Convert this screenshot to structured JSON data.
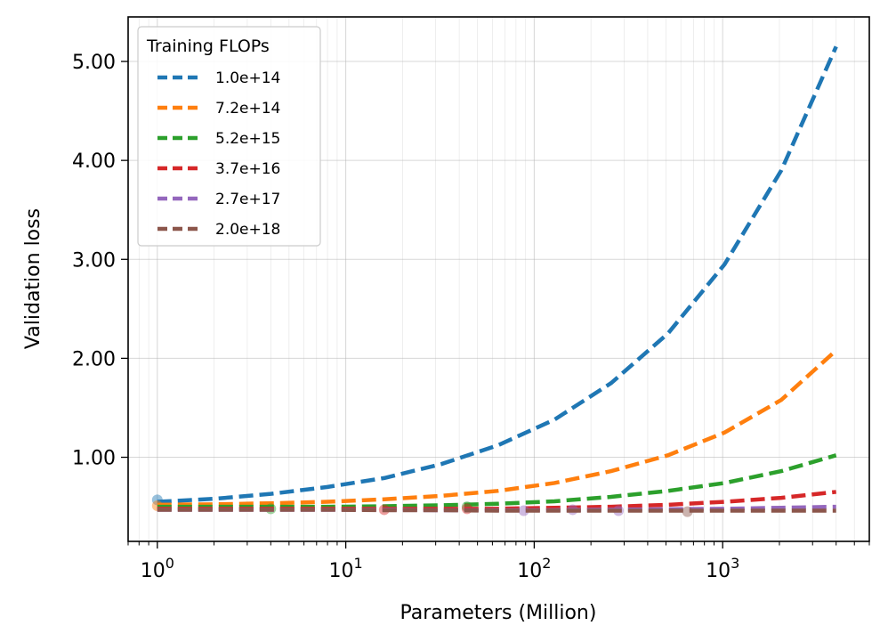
{
  "chart_data": {
    "type": "line",
    "xscale": "log",
    "xlabel": "Parameters (Million)",
    "ylabel": "Validation loss",
    "xlim": [
      0.7,
      6000
    ],
    "ylim": [
      0.15,
      5.45
    ],
    "yticks": [
      1.0,
      2.0,
      3.0,
      4.0,
      5.0
    ],
    "ytick_labels": [
      "1.00",
      "2.00",
      "3.00",
      "4.00",
      "5.00"
    ],
    "xticks": [
      {
        "base": "10",
        "exp": "0",
        "value": 1
      },
      {
        "base": "10",
        "exp": "1",
        "value": 10
      },
      {
        "base": "10",
        "exp": "2",
        "value": 100
      },
      {
        "base": "10",
        "exp": "3",
        "value": 1000
      }
    ],
    "grid": true,
    "legend": {
      "title": "Training FLOPs",
      "placement": "top-left"
    },
    "fit_x": [
      1,
      2,
      4,
      8,
      16,
      32,
      64,
      128,
      256,
      512,
      1024,
      2048,
      4000
    ],
    "series": [
      {
        "name": "1.0e+14",
        "color": "#1f77b4",
        "fit": [
          0.55,
          0.58,
          0.63,
          0.7,
          0.79,
          0.93,
          1.12,
          1.38,
          1.75,
          2.25,
          2.95,
          3.9,
          5.15
        ],
        "points": [
          {
            "x": 1.0,
            "y": 0.57
          }
        ]
      },
      {
        "name": "7.2e+14",
        "color": "#ff7f0e",
        "fit": [
          0.52,
          0.525,
          0.535,
          0.55,
          0.575,
          0.61,
          0.66,
          0.74,
          0.86,
          1.02,
          1.25,
          1.58,
          2.08
        ],
        "points": [
          {
            "x": 1.0,
            "y": 0.51
          }
        ]
      },
      {
        "name": "5.2e+15",
        "color": "#2ca02c",
        "fit": [
          0.5,
          0.5,
          0.5,
          0.5,
          0.505,
          0.515,
          0.53,
          0.555,
          0.6,
          0.66,
          0.74,
          0.86,
          1.02
        ],
        "points": [
          {
            "x": 4.0,
            "y": 0.48
          },
          {
            "x": 44.0,
            "y": 0.5
          }
        ]
      },
      {
        "name": "3.7e+16",
        "color": "#d62728",
        "fit": [
          0.48,
          0.48,
          0.48,
          0.48,
          0.48,
          0.48,
          0.48,
          0.49,
          0.5,
          0.52,
          0.55,
          0.59,
          0.65
        ],
        "points": [
          {
            "x": 16.0,
            "y": 0.47
          },
          {
            "x": 44.0,
            "y": 0.48
          }
        ]
      },
      {
        "name": "2.7e+17",
        "color": "#9467bd",
        "fit": [
          0.47,
          0.47,
          0.47,
          0.47,
          0.47,
          0.465,
          0.465,
          0.465,
          0.47,
          0.475,
          0.48,
          0.49,
          0.5
        ],
        "points": [
          {
            "x": 88.0,
            "y": 0.46
          },
          {
            "x": 160.0,
            "y": 0.47
          },
          {
            "x": 280.0,
            "y": 0.46
          }
        ]
      },
      {
        "name": "2.0e+18",
        "color": "#8c564b",
        "fit": [
          0.47,
          0.47,
          0.47,
          0.47,
          0.465,
          0.465,
          0.46,
          0.46,
          0.46,
          0.46,
          0.46,
          0.46,
          0.46
        ],
        "points": [
          {
            "x": 650.0,
            "y": 0.45
          }
        ]
      }
    ]
  }
}
